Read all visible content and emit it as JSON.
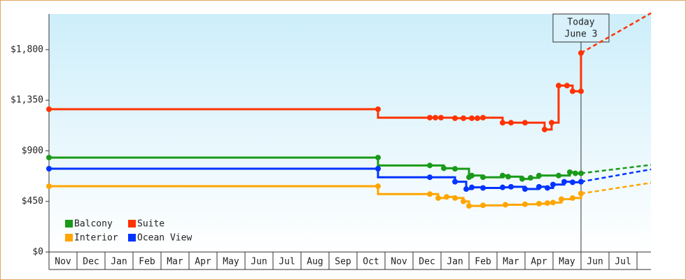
{
  "chart_data": {
    "type": "step-line",
    "categories": [
      "Nov",
      "Dec",
      "Jan",
      "Feb",
      "Mar",
      "Apr",
      "May",
      "Jun",
      "Jul",
      "Aug",
      "Sep",
      "Oct",
      "Nov",
      "Dec",
      "Jan",
      "Feb",
      "Mar",
      "Apr",
      "May",
      "Jun",
      "Jul"
    ],
    "xlim": [
      0,
      21.5
    ],
    "ylim": [
      0,
      2117
    ],
    "yticks": [
      {
        "value": 0,
        "label": "$0"
      },
      {
        "value": 450,
        "label": "$450"
      },
      {
        "value": 900,
        "label": "$900"
      },
      {
        "value": 1350,
        "label": "$1,350"
      },
      {
        "value": 1800,
        "label": "$1,800"
      }
    ],
    "annotation": {
      "x": 19.0,
      "lines": [
        "Today",
        "June 3"
      ]
    },
    "series": [
      {
        "name": "Balcony",
        "color": "#1a9a1a",
        "x": [
          0,
          11.75,
          11.75,
          13.6,
          14.1,
          14.5,
          15.0,
          15.1,
          15.5,
          16.2,
          16.4,
          16.9,
          17.2,
          17.5,
          18.2,
          18.6,
          18.8,
          19.0
        ],
        "values": [
          840,
          840,
          770,
          770,
          745,
          740,
          665,
          680,
          665,
          680,
          670,
          650,
          660,
          680,
          680,
          710,
          700,
          700
        ],
        "forecast": {
          "x": [
            19.0,
            21.5
          ],
          "values": [
            700,
            775
          ]
        }
      },
      {
        "name": "Suite",
        "color": "#ff3300",
        "x": [
          0,
          11.75,
          11.75,
          13.6,
          13.8,
          14.0,
          14.5,
          14.8,
          15.1,
          15.3,
          15.5,
          16.2,
          16.5,
          17.0,
          17.7,
          17.95,
          18.2,
          18.5,
          18.7,
          19.0,
          19.0
        ],
        "values": [
          1270,
          1270,
          1195,
          1195,
          1195,
          1195,
          1190,
          1190,
          1190,
          1190,
          1195,
          1150,
          1150,
          1150,
          1090,
          1150,
          1480,
          1480,
          1430,
          1430,
          1770
        ],
        "forecast": {
          "x": [
            19.0,
            21.5
          ],
          "values": [
            1770,
            2125
          ]
        }
      },
      {
        "name": "Interior",
        "color": "#ffa500",
        "x": [
          0,
          11.75,
          11.75,
          13.6,
          13.9,
          14.2,
          14.5,
          14.8,
          15.0,
          15.5,
          16.3,
          17.0,
          17.5,
          17.8,
          18.0,
          18.3,
          18.7,
          19.0
        ],
        "values": [
          585,
          585,
          515,
          515,
          480,
          490,
          480,
          450,
          410,
          415,
          420,
          425,
          430,
          435,
          440,
          470,
          480,
          520
        ],
        "forecast": {
          "x": [
            19.0,
            21.5
          ],
          "values": [
            520,
            615
          ]
        }
      },
      {
        "name": "Ocean View",
        "color": "#0033ff",
        "x": [
          0,
          11.75,
          11.75,
          13.6,
          14.5,
          14.9,
          15.1,
          15.5,
          16.2,
          16.5,
          17.0,
          17.5,
          17.8,
          18.0,
          18.4,
          18.7,
          19.0
        ],
        "values": [
          741,
          741,
          665,
          665,
          625,
          560,
          575,
          570,
          575,
          580,
          560,
          580,
          570,
          600,
          625,
          620,
          625
        ],
        "forecast": {
          "x": [
            19.0,
            21.5
          ],
          "values": [
            625,
            735
          ]
        }
      }
    ]
  }
}
